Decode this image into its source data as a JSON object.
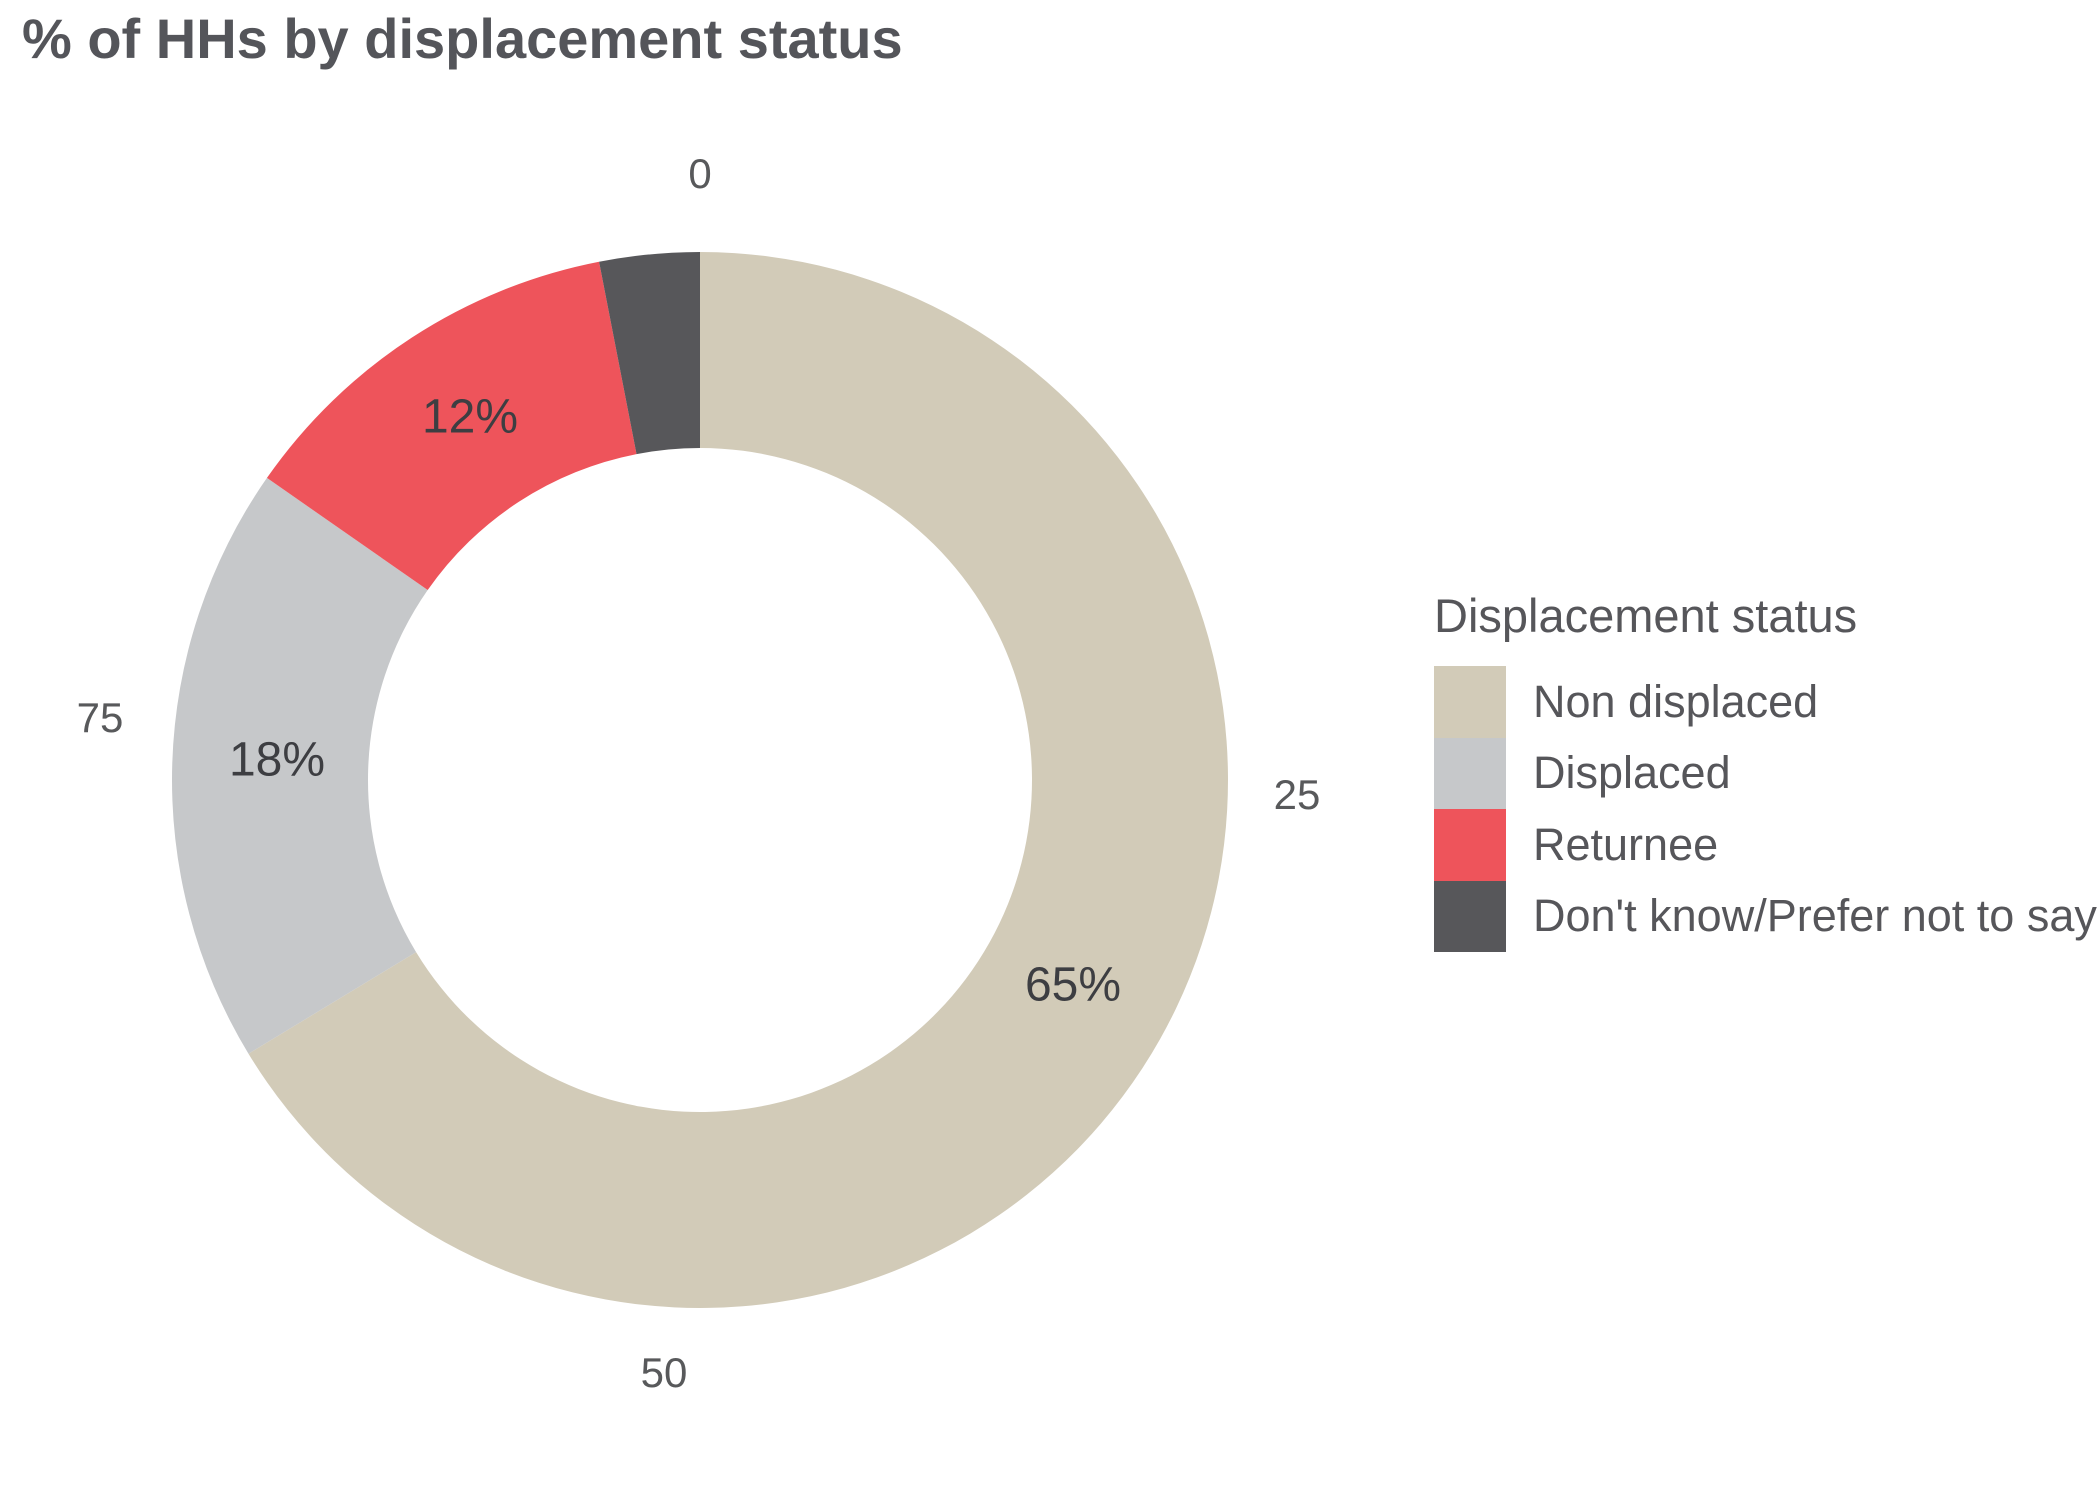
{
  "chart_data": {
    "type": "pie",
    "variant": "donut",
    "title": "% of HHs by displacement status",
    "slices": [
      {
        "name": "Non displaced",
        "value": 65,
        "label": "65%",
        "color": "#d2cbb8"
      },
      {
        "name": "Displaced",
        "value": 18,
        "label": "18%",
        "color": "#c6c8ca"
      },
      {
        "name": "Returnee",
        "value": 12,
        "label": "12%",
        "color": "#ee545b"
      },
      {
        "name": "Don't know/Prefer not to say",
        "value": 3,
        "label": "",
        "color": "#57575a",
        "estimated_from_arc": true
      }
    ],
    "ring_tick_labels": [
      "0",
      "25",
      "50",
      "75"
    ],
    "legend": {
      "title": "Displacement status",
      "position": "right",
      "entries": [
        "Non displaced",
        "Displaced",
        "Returnee",
        "Don't know/Prefer not to say"
      ]
    },
    "layout": {
      "start_angle_deg": 0,
      "direction": "clockwise",
      "grid": false
    }
  }
}
